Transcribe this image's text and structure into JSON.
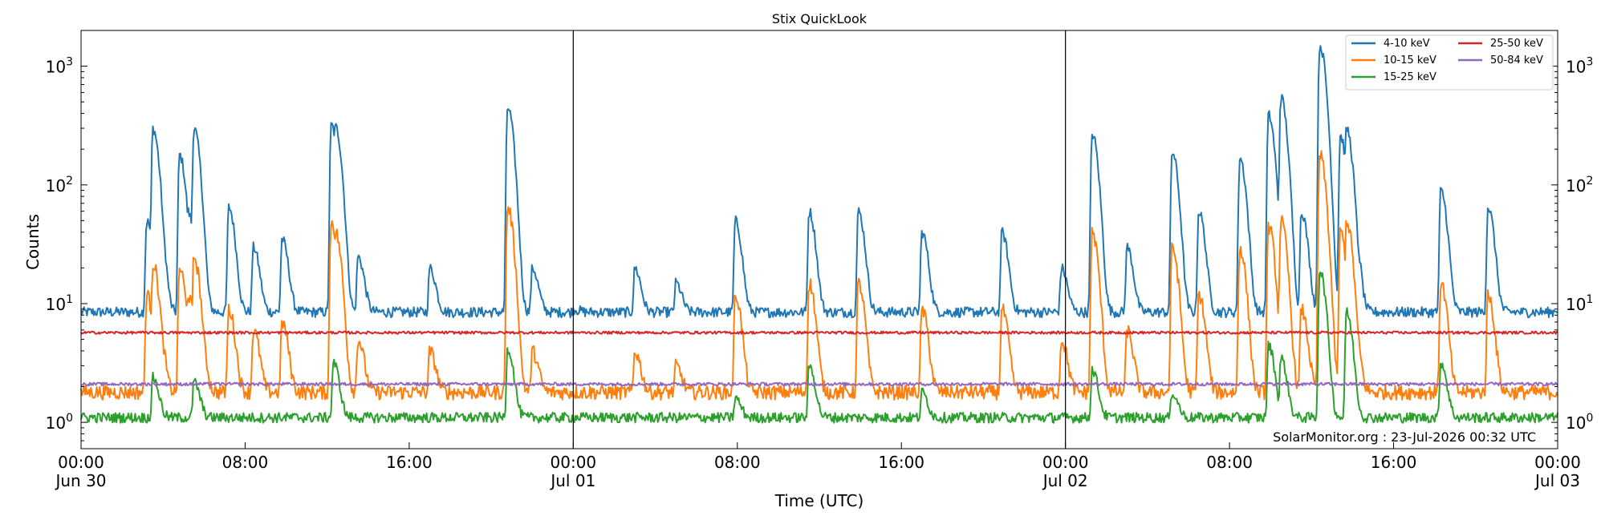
{
  "chart_data": {
    "type": "line",
    "title": "Stix QuickLook",
    "xlabel": "Time (UTC)",
    "ylabel": "Counts",
    "yscale": "log",
    "ylim": [
      0.6,
      2000
    ],
    "xlim_hours": [
      0,
      72
    ],
    "x_ticks": [
      {
        "t": 0,
        "line1": "00:00",
        "line2": "Jun 30"
      },
      {
        "t": 8,
        "line1": "08:00",
        "line2": ""
      },
      {
        "t": 16,
        "line1": "16:00",
        "line2": ""
      },
      {
        "t": 24,
        "line1": "00:00",
        "line2": "Jul 01"
      },
      {
        "t": 32,
        "line1": "08:00",
        "line2": ""
      },
      {
        "t": 40,
        "line1": "16:00",
        "line2": ""
      },
      {
        "t": 48,
        "line1": "00:00",
        "line2": "Jul 02"
      },
      {
        "t": 56,
        "line1": "08:00",
        "line2": ""
      },
      {
        "t": 64,
        "line1": "16:00",
        "line2": ""
      },
      {
        "t": 72,
        "line1": "00:00",
        "line2": "Jul 03"
      }
    ],
    "y_ticks": [
      {
        "value": 1,
        "base": "10",
        "exp": "0"
      },
      {
        "value": 10,
        "base": "10",
        "exp": "1"
      },
      {
        "value": 100,
        "base": "10",
        "exp": "2"
      },
      {
        "value": 1000,
        "base": "10",
        "exp": "3"
      }
    ],
    "day_boundaries_hours": [
      24,
      48
    ],
    "legend_position": "top-right",
    "annotation": "SolarMonitor.org : 23-Jul-2026 00:32 UTC",
    "series": [
      {
        "name": "4-10 keV",
        "color": "#1f77b4",
        "baseline": 8.5,
        "x": [
          0,
          2.5,
          3.2,
          3.5,
          3.7,
          4.8,
          5.2,
          5.5,
          5.7,
          7.2,
          8.4,
          9.8,
          12.2,
          12.4,
          13.5,
          17,
          20.8,
          22,
          24,
          27,
          29,
          31.9,
          35.5,
          37.9,
          41,
          44.9,
          47.8,
          49.3,
          51,
          53.2,
          54.5,
          56.5,
          57.9,
          58.5,
          59.5,
          60.4,
          61.4,
          61.7,
          62,
          66.3,
          68.6,
          71.9
        ],
        "y": [
          8.5,
          8.5,
          50,
          300,
          80,
          180,
          60,
          300,
          40,
          65,
          30,
          35,
          320,
          310,
          25,
          20,
          450,
          20,
          9,
          20,
          15,
          50,
          60,
          60,
          40,
          40,
          20,
          270,
          30,
          190,
          60,
          170,
          390,
          550,
          60,
          1500,
          260,
          300,
          50,
          90,
          65,
          9
        ]
      },
      {
        "name": "10-15 keV",
        "color": "#ff7f0e",
        "baseline": 1.8,
        "x": [
          0,
          2.5,
          3.2,
          3.5,
          3.7,
          4.8,
          5.2,
          5.5,
          5.7,
          7.2,
          8.4,
          9.8,
          12.2,
          12.4,
          13.5,
          17,
          20.8,
          22,
          24,
          27,
          29,
          31.9,
          35.5,
          37.9,
          41,
          44.9,
          47.8,
          49.3,
          51,
          53.2,
          54.5,
          56.5,
          57.9,
          58.5,
          59.5,
          60.4,
          61.4,
          61.7,
          62,
          66.3,
          68.6,
          71.9
        ],
        "y": [
          1.8,
          1.8,
          12,
          22,
          8,
          20,
          12,
          25,
          8,
          9,
          6,
          7,
          50,
          40,
          5,
          4,
          65,
          4,
          1.8,
          4,
          3,
          12,
          15,
          15,
          9,
          9,
          5,
          40,
          6,
          30,
          12,
          30,
          45,
          50,
          9,
          180,
          40,
          50,
          8,
          15,
          12,
          1.8
        ]
      },
      {
        "name": "15-25 keV",
        "color": "#2ca02c",
        "baseline": 1.1,
        "x": [
          0,
          3.5,
          5.5,
          12.3,
          20.8,
          24,
          31.9,
          35.5,
          41,
          49.3,
          53.2,
          57.9,
          58.5,
          60.4,
          61.7,
          66.3,
          72
        ],
        "y": [
          1.1,
          2.4,
          2.2,
          3.2,
          4.2,
          1.1,
          1.6,
          3.0,
          1.8,
          2.8,
          1.8,
          4.5,
          3.5,
          19,
          8.5,
          3.2,
          1.1
        ]
      },
      {
        "name": "25-50 keV",
        "color": "#d62728",
        "baseline": 5.7,
        "x": [
          0,
          72
        ],
        "y": [
          5.7,
          5.7
        ]
      },
      {
        "name": "50-84 keV",
        "color": "#9467bd",
        "baseline": 2.1,
        "x": [
          0,
          72
        ],
        "y": [
          2.1,
          2.1
        ]
      }
    ]
  }
}
